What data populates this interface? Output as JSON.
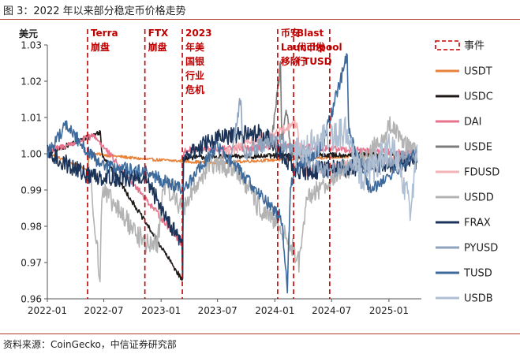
{
  "figure": {
    "title": "图 3：2022 年以来部分稳定币价格走势",
    "source": "资料来源：CoinGecko，中信证券研究部"
  },
  "chart_data": {
    "type": "line",
    "ylabel": "美元",
    "ylim": [
      0.96,
      1.03
    ],
    "yticks": [
      "0.96",
      "0.97",
      "0.98",
      "0.99",
      "1.00",
      "1.01",
      "1.02",
      "1.03"
    ],
    "xlim": [
      "2022-01-01",
      "2025-04-15"
    ],
    "xticks": [
      {
        "date": "2022-01-01",
        "label": "2022-01"
      },
      {
        "date": "2022-07-01",
        "label": "2022-07"
      },
      {
        "date": "2023-01-01",
        "label": "2023-01"
      },
      {
        "date": "2023-07-01",
        "label": "2023-07"
      },
      {
        "date": "2024-01-01",
        "label": "2024-01"
      },
      {
        "date": "2024-07-01",
        "label": "2024-07"
      },
      {
        "date": "2025-01-01",
        "label": "2025-01"
      }
    ],
    "events": [
      {
        "date": "2022-05-10",
        "label": "Terra\n崩盘"
      },
      {
        "date": "2022-11-10",
        "label": "FTX\n崩盘"
      },
      {
        "date": "2023-03-10",
        "label": "2023\n年美\n国银\n行业\n危机"
      },
      {
        "date": "2023-03-10",
        "label": "2023\n年美\n国银\n行业\n危机"
      },
      {
        "date": "2024-01-10",
        "label": "币安\nLaunchpool\n移除 TUSD"
      },
      {
        "date": "2024-03-01",
        "label": "Blast\n代币发\n行"
      },
      {
        "date": "2024-06-25",
        "label": ""
      }
    ],
    "legend": {
      "event_label": "事件",
      "placement": "right"
    },
    "series": [
      {
        "name": "USDT",
        "color": "#e8823a",
        "base_noise": 0.0004,
        "start": "2022-01-01",
        "end": "2025-04-01",
        "points": [
          [
            "2022-01-01",
            1.0002
          ],
          [
            "2022-05-12",
            0.9955
          ],
          [
            "2022-05-14",
            1.0001
          ],
          [
            "2022-11-10",
            0.9985
          ],
          [
            "2023-06-15",
            0.9975
          ],
          [
            "2025-04-01",
            1.0001
          ]
        ]
      },
      {
        "name": "USDC",
        "color": "#1f1a17",
        "base_noise": 0.0007,
        "start": "2022-01-01",
        "end": "2025-04-01",
        "points": [
          [
            "2022-01-01",
            1.0
          ],
          [
            "2022-06-20",
            1.006
          ],
          [
            "2022-06-25",
            1.0
          ],
          [
            "2023-03-11",
            0.965
          ],
          [
            "2023-03-12",
            0.985
          ],
          [
            "2023-03-14",
            0.999
          ],
          [
            "2025-04-01",
            1.0
          ]
        ]
      },
      {
        "name": "DAI",
        "color": "#e8738d",
        "base_noise": 0.0009,
        "start": "2022-01-01",
        "end": "2025-04-01",
        "points": [
          [
            "2022-01-01",
            1.0005
          ],
          [
            "2022-06-01",
            1.005
          ],
          [
            "2023-03-11",
            0.975
          ],
          [
            "2023-03-14",
            1.001
          ],
          [
            "2024-03-10",
            1.002
          ],
          [
            "2025-04-01",
            1.0
          ]
        ]
      },
      {
        "name": "USDE",
        "color": "#7c7c7c",
        "base_noise": 0.002,
        "start": "2023-12-20",
        "end": "2024-04-20",
        "points": [
          [
            "2023-12-20",
            1.002
          ],
          [
            "2024-01-20",
            1.025
          ],
          [
            "2024-01-22",
            1.003
          ],
          [
            "2024-02-10",
            1.012
          ],
          [
            "2024-02-20",
            1.001
          ],
          [
            "2024-04-20",
            1.0
          ]
        ]
      },
      {
        "name": "FDUSD",
        "color": "#f3b3b6",
        "base_noise": 0.0015,
        "start": "2023-07-15",
        "end": "2025-04-01",
        "points": [
          [
            "2023-07-15",
            1.0
          ],
          [
            "2024-01-15",
            1.006
          ],
          [
            "2024-03-10",
            1.008
          ],
          [
            "2024-04-01",
            0.995
          ],
          [
            "2025-04-01",
            0.9995
          ]
        ]
      },
      {
        "name": "USDD",
        "color": "#b3b3b3",
        "base_noise": 0.003,
        "start": "2022-05-10",
        "end": "2025-04-01",
        "points": [
          [
            "2022-05-10",
            1.0
          ],
          [
            "2022-06-10",
            0.975
          ],
          [
            "2022-06-18",
            0.962
          ],
          [
            "2022-06-25",
            0.99
          ],
          [
            "2022-11-12",
            0.975
          ],
          [
            "2022-12-20",
            0.975
          ],
          [
            "2023-01-10",
            0.992
          ],
          [
            "2023-03-11",
            0.985
          ],
          [
            "2023-06-01",
            0.997
          ],
          [
            "2023-09-01",
            0.996
          ],
          [
            "2023-11-10",
            0.985
          ],
          [
            "2024-01-15",
            0.98
          ],
          [
            "2024-02-20",
            0.975
          ],
          [
            "2024-03-20",
            0.97
          ],
          [
            "2024-04-15",
            0.988
          ],
          [
            "2024-07-01",
            0.993
          ],
          [
            "2024-11-01",
            1.0
          ],
          [
            "2025-01-10",
            1.008
          ],
          [
            "2025-04-01",
            0.999
          ]
        ]
      },
      {
        "name": "FRAX",
        "color": "#1b3358",
        "base_noise": 0.0025,
        "start": "2022-01-01",
        "end": "2025-04-01",
        "points": [
          [
            "2022-01-01",
            1.0
          ],
          [
            "2022-05-12",
            0.994
          ],
          [
            "2022-11-11",
            0.993
          ],
          [
            "2023-03-10",
            0.975
          ],
          [
            "2023-03-11",
            0.965
          ],
          [
            "2023-03-13",
            0.999
          ],
          [
            "2023-06-20",
            1.004
          ],
          [
            "2023-11-20",
            1.006
          ],
          [
            "2024-03-15",
            0.995
          ],
          [
            "2025-04-01",
            0.998
          ]
        ]
      },
      {
        "name": "PYUSD",
        "color": "#8fa3bc",
        "base_noise": 0.0022,
        "start": "2023-08-15",
        "end": "2025-04-01",
        "points": [
          [
            "2023-08-15",
            1.0
          ],
          [
            "2023-09-15",
            1.016
          ],
          [
            "2023-09-20",
            1.0
          ],
          [
            "2024-01-10",
            1.004
          ],
          [
            "2024-06-01",
            0.995
          ],
          [
            "2025-04-01",
            1.0
          ]
        ]
      },
      {
        "name": "TUSD",
        "color": "#3e6a9b",
        "base_noise": 0.0018,
        "start": "2022-01-01",
        "end": "2025-04-01",
        "points": [
          [
            "2022-01-01",
            1.0
          ],
          [
            "2022-03-01",
            1.008
          ],
          [
            "2022-06-15",
            0.997
          ],
          [
            "2022-11-10",
            0.995
          ],
          [
            "2023-03-10",
            0.99
          ],
          [
            "2023-07-01",
            1.002
          ],
          [
            "2024-01-15",
            0.983
          ],
          [
            "2024-01-25",
            0.98
          ],
          [
            "2024-02-10",
            0.962
          ],
          [
            "2024-02-20",
            0.99
          ],
          [
            "2024-03-01",
            0.995
          ],
          [
            "2024-06-01",
            1.002
          ],
          [
            "2024-08-20",
            1.027
          ],
          [
            "2024-08-25",
            1.006
          ],
          [
            "2024-11-01",
            0.99
          ],
          [
            "2025-04-01",
            1.0
          ]
        ]
      },
      {
        "name": "USDB",
        "color": "#aebfd4",
        "base_noise": 0.0045,
        "start": "2024-03-01",
        "end": "2025-04-01",
        "points": [
          [
            "2024-03-01",
            1.0
          ],
          [
            "2024-05-01",
            1.003
          ],
          [
            "2024-08-20",
            1.006
          ],
          [
            "2024-10-10",
            0.993
          ],
          [
            "2025-01-10",
            1.002
          ],
          [
            "2025-03-10",
            0.985
          ],
          [
            "2025-04-01",
            1.0
          ]
        ]
      }
    ]
  }
}
